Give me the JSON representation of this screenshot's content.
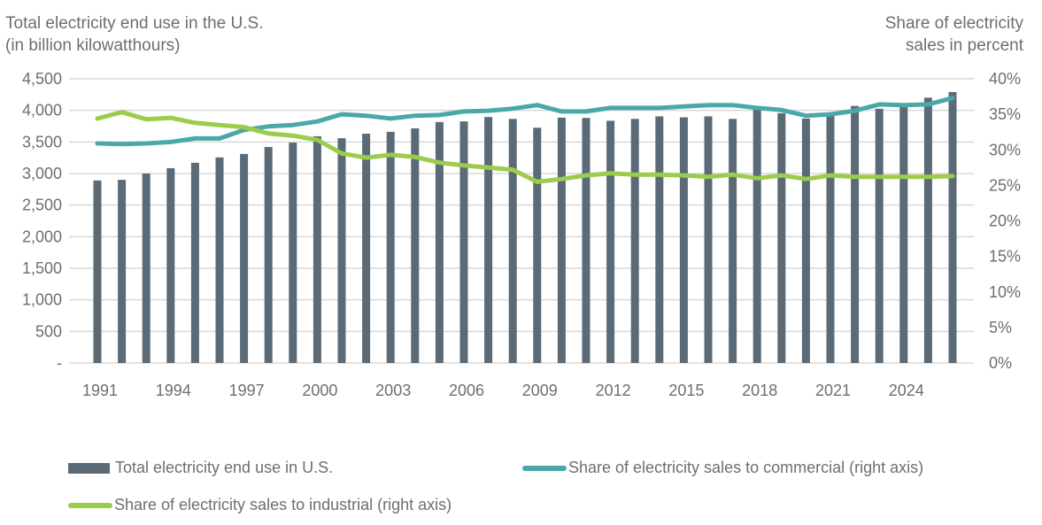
{
  "chart_data": {
    "type": "bar+line",
    "title": "",
    "left_axis": {
      "title_lines": [
        "Total electricity end use in the U.S.",
        "(in billion kilowatthours)"
      ],
      "ylim": [
        0,
        4500
      ],
      "ticks": [
        0,
        500,
        1000,
        1500,
        2000,
        2500,
        3000,
        3500,
        4000,
        4500
      ],
      "tick_labels": [
        "-",
        "500",
        "1,000",
        "1,500",
        "2,000",
        "2,500",
        "3,000",
        "3,500",
        "4,000",
        "4,500"
      ]
    },
    "right_axis": {
      "title_lines": [
        "Share of electricity",
        "sales in percent"
      ],
      "ylim": [
        0,
        40
      ],
      "ticks": [
        0,
        5,
        10,
        15,
        20,
        25,
        30,
        35,
        40
      ],
      "tick_labels": [
        "0%",
        "5%",
        "10%",
        "15%",
        "20%",
        "25%",
        "30%",
        "35%",
        "40%"
      ]
    },
    "x": [
      1991,
      1992,
      1993,
      1994,
      1995,
      1996,
      1997,
      1998,
      1999,
      2000,
      2001,
      2002,
      2003,
      2004,
      2005,
      2006,
      2007,
      2008,
      2009,
      2010,
      2011,
      2012,
      2013,
      2014,
      2015,
      2016,
      2017,
      2018,
      2019,
      2020,
      2021,
      2022,
      2023,
      2024,
      2025,
      2026
    ],
    "x_tick_labels": [
      "1991",
      "1994",
      "1997",
      "2000",
      "2003",
      "2006",
      "2009",
      "2012",
      "2015",
      "2018",
      "2021",
      "2024"
    ],
    "grid": true,
    "legend_position": "bottom",
    "series": [
      {
        "name": "Total electricity end use in U.S.",
        "kind": "bar",
        "axis": "left",
        "color": "#5a6a76",
        "values": [
          2890,
          2900,
          3000,
          3085,
          3170,
          3255,
          3310,
          3420,
          3490,
          3590,
          3560,
          3630,
          3660,
          3715,
          3815,
          3825,
          3895,
          3865,
          3725,
          3885,
          3880,
          3835,
          3865,
          3905,
          3890,
          3905,
          3865,
          4010,
          3955,
          3870,
          3910,
          4070,
          4025,
          4050,
          4200,
          4290
        ]
      },
      {
        "name": "Share of electricity sales to commercial (right axis)",
        "kind": "line",
        "axis": "right",
        "color": "#4aa8a8",
        "values": [
          30.9,
          30.8,
          30.9,
          31.1,
          31.6,
          31.6,
          32.8,
          33.3,
          33.5,
          34.0,
          35.0,
          34.8,
          34.4,
          34.8,
          34.9,
          35.4,
          35.5,
          35.8,
          36.3,
          35.4,
          35.4,
          35.9,
          35.9,
          35.9,
          36.1,
          36.3,
          36.3,
          35.9,
          35.6,
          34.8,
          35.0,
          35.5,
          36.4,
          36.3,
          36.4,
          37.3
        ]
      },
      {
        "name": "Share of electricity sales to industrial (right axis)",
        "kind": "line",
        "axis": "right",
        "color": "#9ccc4c",
        "values": [
          34.4,
          35.3,
          34.3,
          34.5,
          33.8,
          33.5,
          33.2,
          32.3,
          32.0,
          31.4,
          29.5,
          28.9,
          29.3,
          29.0,
          28.2,
          27.8,
          27.5,
          27.2,
          25.5,
          25.9,
          26.4,
          26.7,
          26.5,
          26.5,
          26.4,
          26.2,
          26.5,
          26.0,
          26.4,
          25.9,
          26.4,
          26.2,
          26.2,
          26.2,
          26.2,
          26.3
        ]
      }
    ]
  },
  "legend": {
    "items": [
      {
        "label": "Total electricity end use in U.S."
      },
      {
        "label": "Share of electricity sales to commercial (right axis)"
      },
      {
        "label": "Share of electricity sales to industrial (right axis)"
      }
    ]
  }
}
